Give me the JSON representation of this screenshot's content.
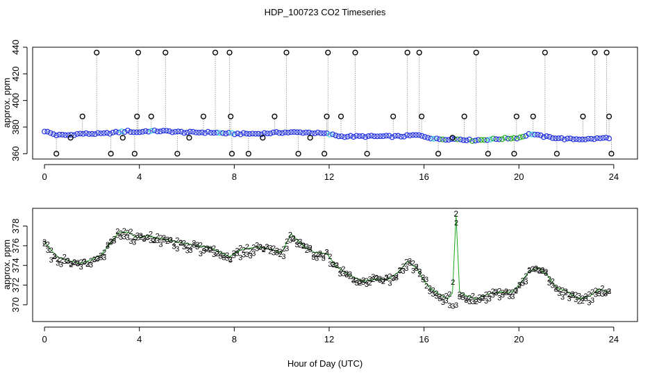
{
  "title": "HDP_100723  CO2 Timeseries",
  "colors": {
    "ring_dark": "#000000",
    "ring_blue": "#1f2fe0",
    "ring_cyan": "#2fd6e0",
    "series2": "#1aa81a",
    "series3": "#1f2fe0",
    "spike_line": "#888888"
  },
  "chart_data": [
    {
      "type": "scatter",
      "name": "top-panel",
      "ylabel": "approx. ppm",
      "xlabel": "",
      "xlim": [
        -0.5,
        25
      ],
      "ylim": [
        356,
        440
      ],
      "xticks": [
        0,
        4,
        8,
        12,
        16,
        20,
        24
      ],
      "yticks": [
        360,
        380,
        400,
        420,
        440
      ],
      "xticklabels": [
        "0",
        "4",
        "8",
        "12",
        "16",
        "20",
        "24"
      ],
      "yticklabels": [
        "360",
        "380",
        "400",
        "420",
        "440"
      ],
      "baseline": {
        "x": [
          0,
          0.5,
          1,
          1.5,
          2,
          2.5,
          3,
          3.5,
          3.9,
          4.3,
          5,
          6,
          7,
          8,
          9,
          10,
          11,
          11.9,
          12.5,
          13,
          14,
          15,
          15.7,
          16,
          16.5,
          17,
          17.5,
          18,
          19,
          20,
          20.5,
          21,
          21.5,
          22,
          22.5,
          23,
          23.8
        ],
        "y": [
          377,
          374,
          374,
          375,
          375,
          375,
          376,
          377,
          376,
          377,
          377,
          376,
          376,
          375,
          375,
          376,
          376,
          375,
          373,
          373,
          373,
          373,
          374,
          373,
          371,
          371,
          371,
          370,
          371,
          372,
          375,
          373,
          372,
          371,
          371,
          371,
          372
        ]
      },
      "outliers": {
        "x": [
          0.5,
          1.1,
          1.6,
          2.2,
          2.8,
          3.3,
          3.8,
          3.9,
          3.95,
          4.5,
          5.1,
          5.6,
          6.1,
          6.7,
          7.2,
          7.8,
          7.85,
          7.9,
          8.6,
          9.2,
          9.7,
          10.2,
          10.7,
          11.2,
          11.8,
          11.9,
          11.95,
          12.5,
          13.1,
          13.6,
          14.7,
          15.3,
          15.8,
          15.9,
          16.6,
          17.2,
          17.7,
          18.2,
          18.7,
          19.8,
          19.9,
          20.6,
          21.1,
          21.6,
          22.7,
          23.2,
          23.7,
          23.8,
          23.9
        ],
        "y": [
          360,
          372,
          388,
          436,
          360,
          372,
          360,
          388,
          436,
          388,
          436,
          360,
          372,
          388,
          436,
          436,
          388,
          360,
          360,
          372,
          388,
          436,
          360,
          372,
          360,
          388,
          436,
          388,
          436,
          360,
          388,
          436,
          436,
          388,
          360,
          372,
          388,
          436,
          360,
          360,
          388,
          388,
          436,
          360,
          388,
          436,
          436,
          388,
          360
        ]
      }
    },
    {
      "type": "line",
      "name": "bottom-panel",
      "ylabel": "approx. ppm",
      "xlabel": "Hour of Day (UTC)",
      "xlim": [
        -0.5,
        25
      ],
      "ylim": [
        368.3,
        379.8
      ],
      "xticks": [
        0,
        4,
        8,
        12,
        16,
        20,
        24
      ],
      "yticks": [
        370,
        372,
        374,
        376,
        378
      ],
      "xticklabels": [
        "0",
        "4",
        "8",
        "12",
        "16",
        "20",
        "24"
      ],
      "yticklabels": [
        "370",
        "372",
        "374",
        "376",
        "378"
      ],
      "series": [
        {
          "name": "2",
          "x": [
            0,
            0.3,
            0.6,
            1.0,
            1.5,
            2.0,
            2.4,
            2.8,
            3.1,
            3.5,
            3.9,
            4.3,
            5.0,
            6.0,
            7.0,
            7.8,
            8.3,
            9.0,
            9.6,
            10.0,
            10.4,
            10.9,
            11.4,
            11.9,
            12.3,
            12.8,
            13.4,
            14.0,
            14.5,
            14.9,
            15.3,
            15.7,
            16.0,
            16.3,
            16.7,
            17.0,
            17.2,
            17.35,
            17.5,
            17.8,
            18.2,
            18.7,
            19.2,
            19.7,
            20.0,
            20.4,
            20.8,
            21.2,
            21.6,
            22.0,
            22.5,
            23.0,
            23.4,
            23.8
          ],
          "y": [
            376.4,
            375.5,
            374.8,
            374.5,
            374.2,
            374.6,
            375.1,
            376.3,
            377.3,
            377.4,
            376.8,
            377.0,
            376.7,
            376.2,
            375.8,
            374.9,
            375.6,
            375.9,
            375.6,
            375.3,
            377.2,
            376.0,
            375.3,
            375.2,
            373.9,
            373.1,
            372.4,
            372.6,
            372.6,
            373.3,
            374.4,
            373.7,
            372.4,
            371.6,
            371.0,
            370.6,
            371.2,
            379.1,
            371.3,
            370.9,
            370.6,
            371.1,
            371.3,
            371.3,
            372.0,
            373.3,
            373.8,
            373.0,
            371.7,
            371.4,
            370.6,
            370.9,
            371.6,
            371.3
          ]
        },
        {
          "name": "3",
          "x": [
            0,
            0.3,
            0.6,
            1.0,
            1.5,
            2.0,
            2.4,
            2.8,
            3.1,
            3.5,
            3.9,
            4.3,
            5.0,
            6.0,
            7.0,
            7.8,
            8.3,
            9.0,
            9.6,
            10.0,
            10.4,
            10.9,
            11.4,
            11.9,
            12.3,
            12.8,
            13.4,
            14.0,
            14.5,
            14.9,
            15.3,
            15.7,
            16.0,
            16.3,
            16.7,
            17.0,
            17.2,
            17.35,
            17.5,
            17.8,
            18.2,
            18.7,
            19.2,
            19.7,
            20.0,
            20.4,
            20.8,
            21.2,
            21.6,
            22.0,
            22.5,
            23.0,
            23.4,
            23.8
          ],
          "y": [
            376.8,
            374.8,
            374.5,
            374.1,
            373.8,
            374.3,
            374.9,
            376.0,
            376.9,
            376.6,
            376.7,
            376.5,
            376.4,
            375.9,
            375.4,
            374.7,
            375.3,
            375.6,
            375.4,
            375.0,
            376.9,
            375.8,
            375.0,
            375.0,
            373.7,
            373.0,
            372.3,
            372.6,
            372.4,
            373.1,
            374.2,
            373.6,
            372.8,
            371.4,
            370.8,
            370.3,
            369.9,
            370.1,
            370.5,
            370.6,
            370.5,
            370.9,
            371.0,
            371.1,
            371.9,
            373.1,
            373.5,
            372.7,
            371.4,
            371.1,
            370.5,
            370.7,
            371.3,
            371.1
          ]
        }
      ]
    }
  ]
}
